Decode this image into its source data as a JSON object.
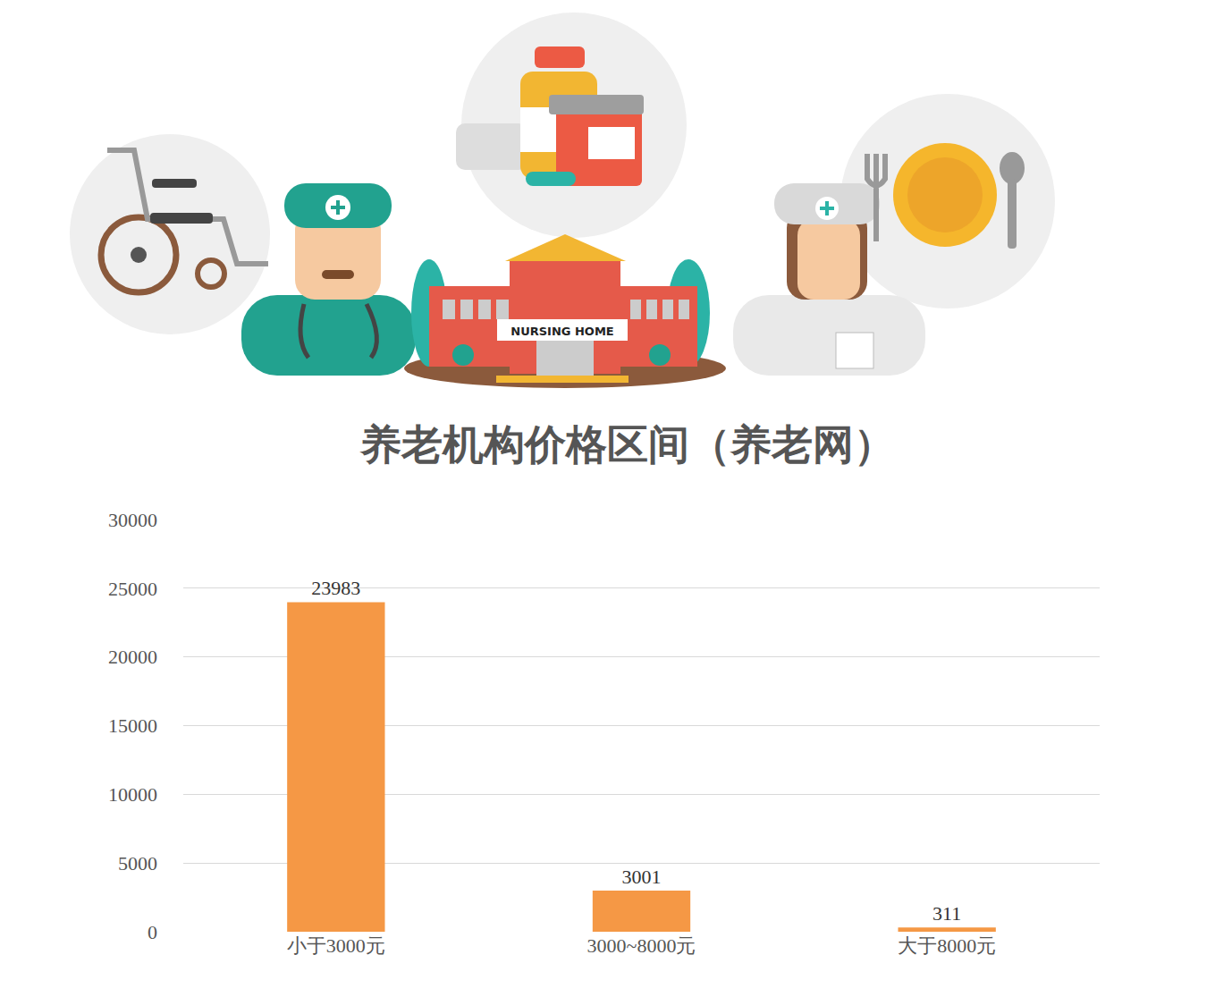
{
  "illustration": {
    "building_label": "NURSING HOME"
  },
  "chart_data": {
    "type": "bar",
    "title": "养老机构价格区间（养老网）",
    "categories": [
      "小于3000元",
      "3000~8000元",
      "大于8000元"
    ],
    "values": [
      23983,
      3001,
      311
    ],
    "color": "#f59845",
    "ylim": [
      0,
      30000
    ],
    "yticks": [
      0,
      5000,
      10000,
      15000,
      20000,
      25000,
      30000
    ],
    "grid": true,
    "data_labels": true
  }
}
